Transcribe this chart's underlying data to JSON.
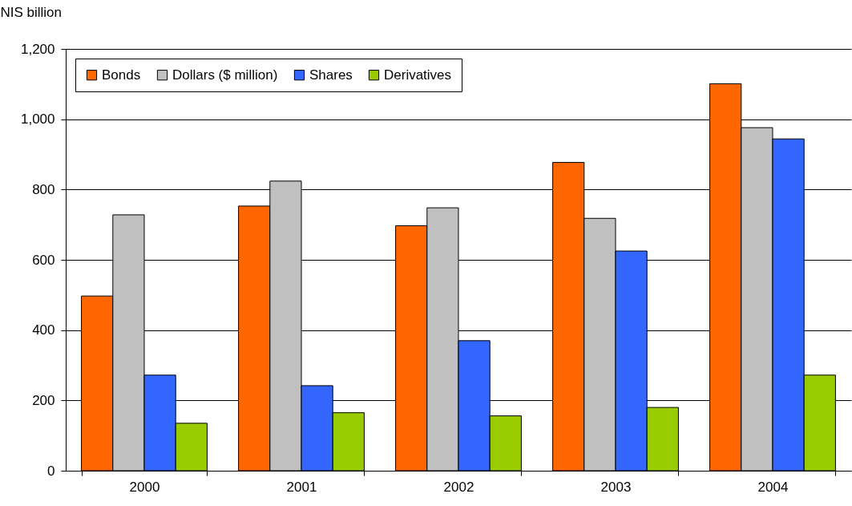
{
  "chart_data": {
    "type": "bar",
    "ylabel": "NIS billion",
    "categories": [
      "2000",
      "2001",
      "2002",
      "2003",
      "2004"
    ],
    "series": [
      {
        "name": "Bonds",
        "color": "#ff6600",
        "values": [
          497,
          753,
          697,
          877,
          1101
        ]
      },
      {
        "name": "Dollars ($ million)",
        "color": "#c0c0c0",
        "values": [
          728,
          824,
          748,
          718,
          976
        ]
      },
      {
        "name": "Shares",
        "color": "#3366ff",
        "values": [
          272,
          242,
          370,
          625,
          944
        ]
      },
      {
        "name": "Derivatives",
        "color": "#99cc00",
        "values": [
          135,
          165,
          156,
          180,
          272
        ]
      }
    ],
    "ylim": [
      0,
      1200
    ],
    "yticks": [
      0,
      200,
      400,
      600,
      800,
      {
        "value": 1000,
        "label": "1,000"
      },
      {
        "value": 1200,
        "label": "1,200"
      }
    ],
    "grid": "y",
    "legend": "top left"
  }
}
